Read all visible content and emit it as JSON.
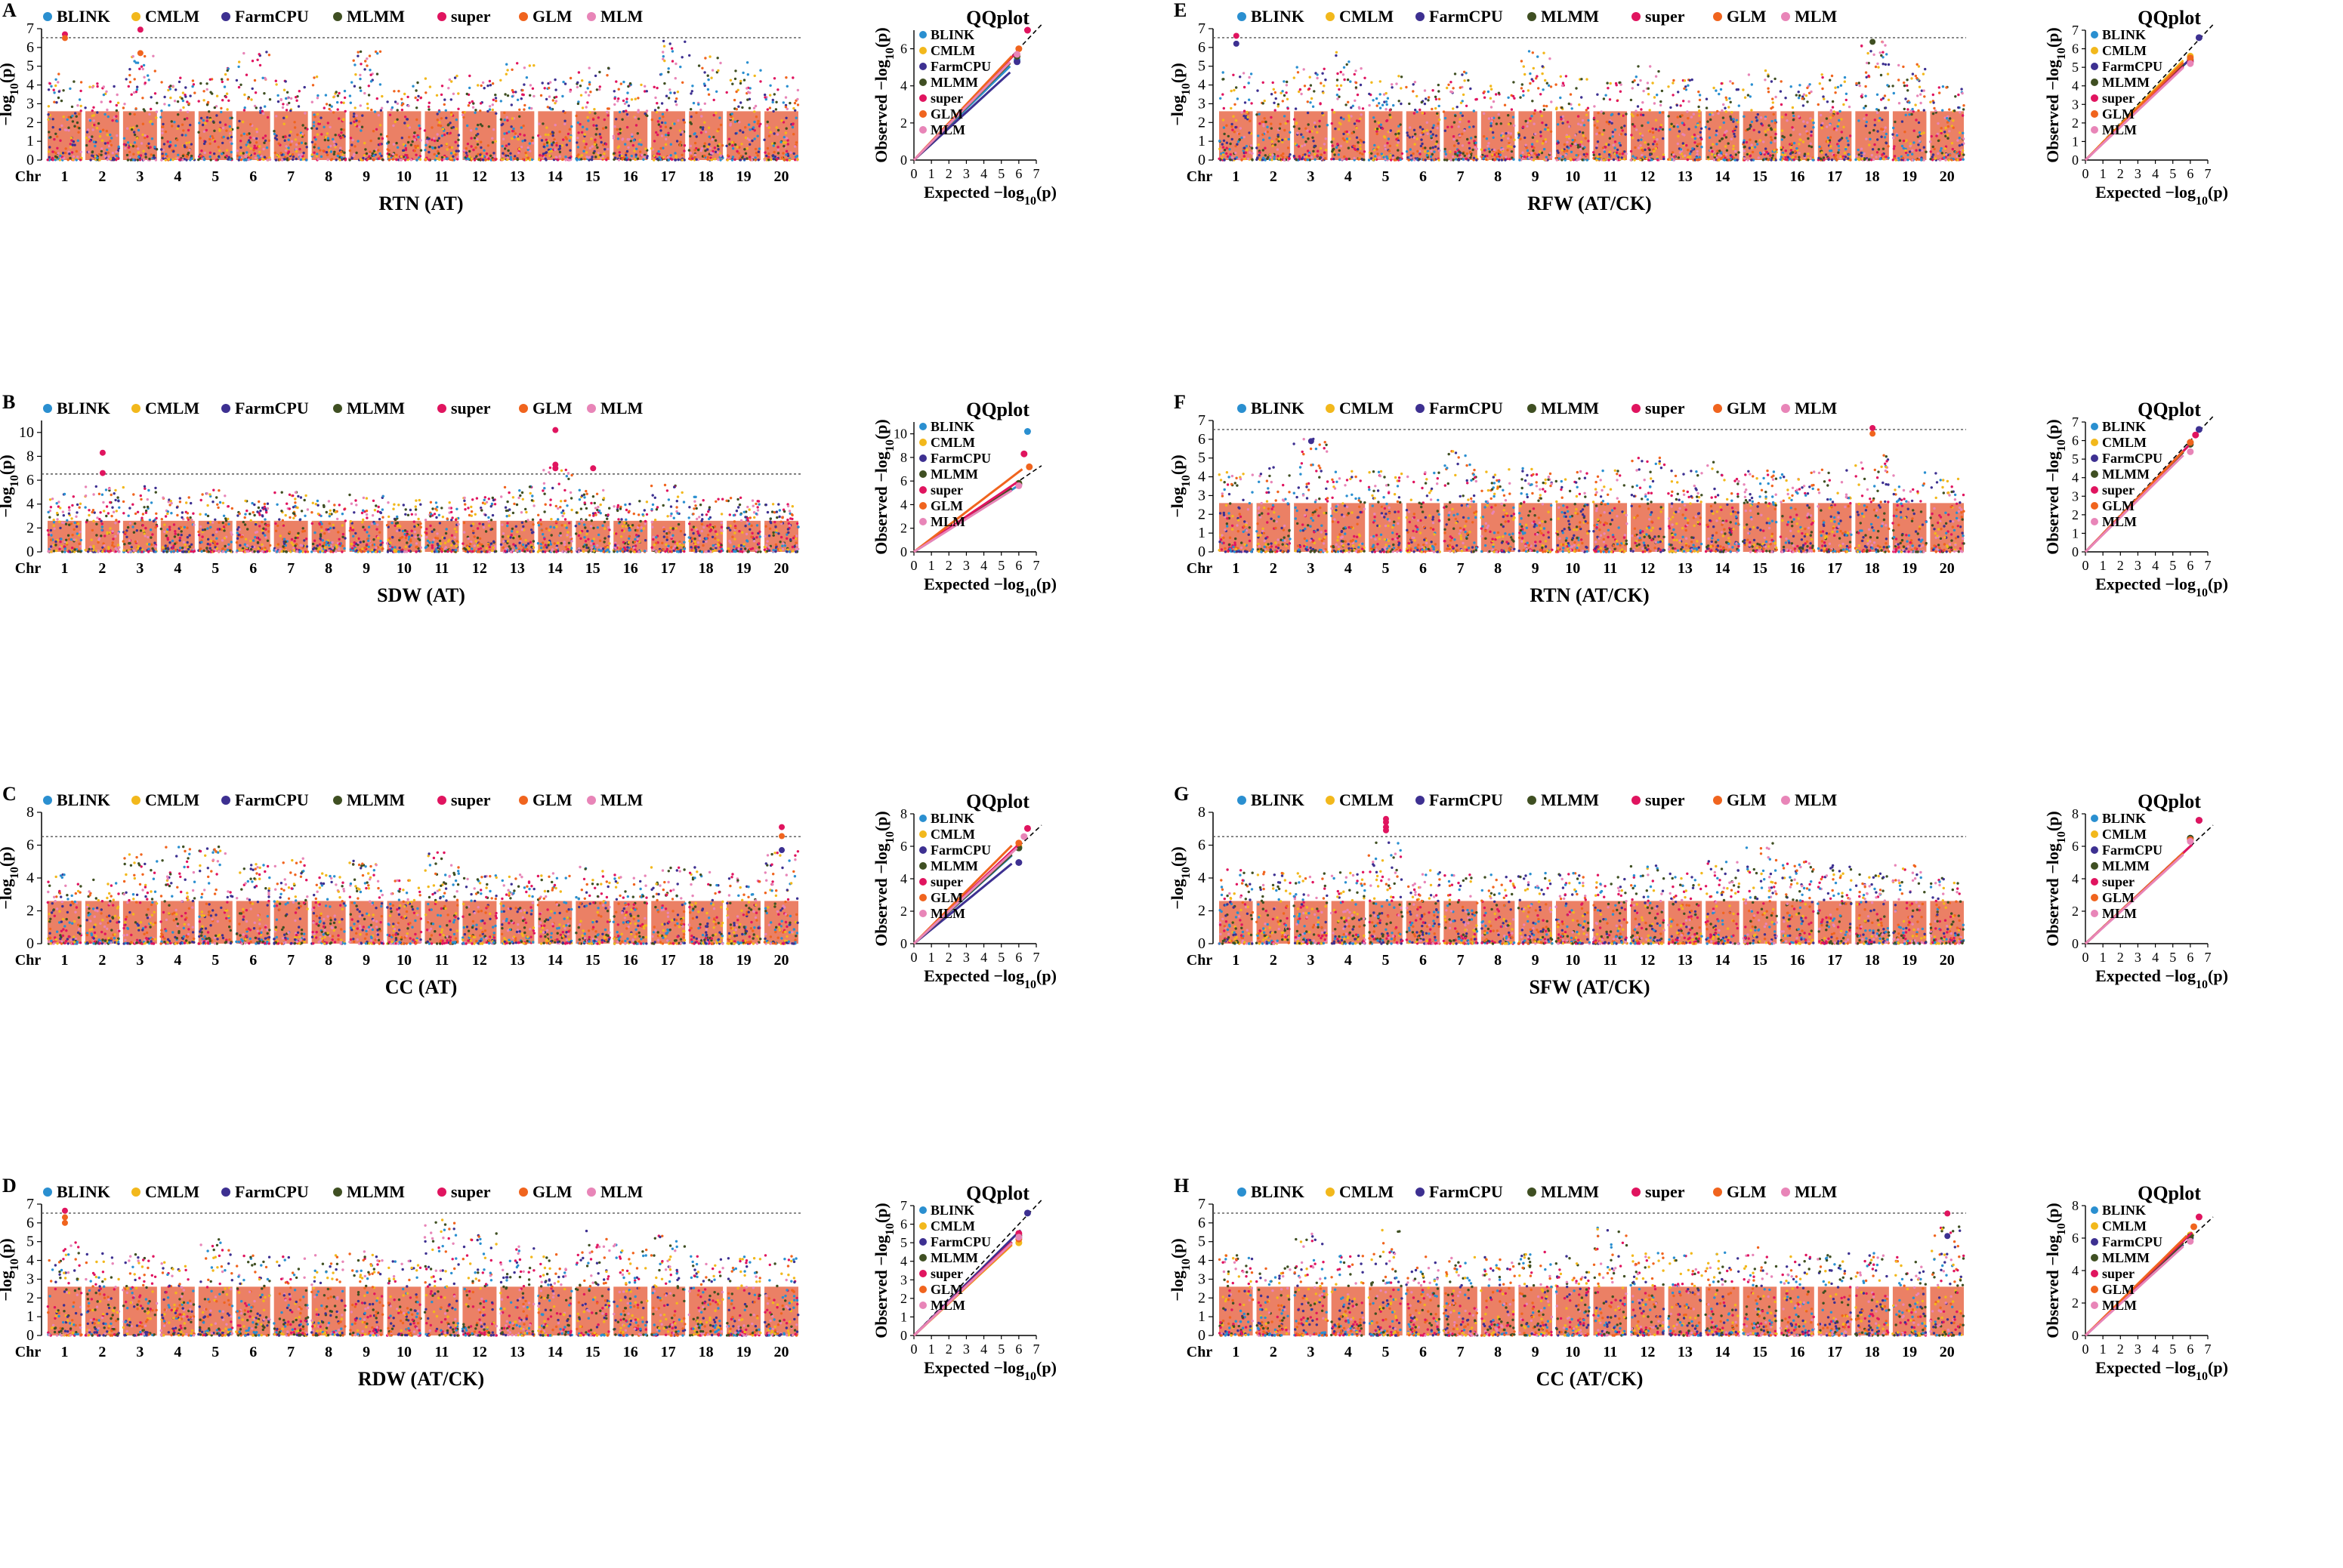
{
  "colors": {
    "BLINK": "#2a8fd0",
    "CMLM": "#f2b81c",
    "FarmCPU": "#3d3091",
    "MLMM": "#3f4f22",
    "super": "#e0145f",
    "GLM": "#f0641e",
    "MLM": "#e885b8",
    "threshold": "#555555",
    "diagonal": "#000000"
  },
  "legend_labels": [
    "BLINK",
    "CMLM",
    "FarmCPU",
    "MLMM",
    "super",
    "GLM",
    "MLM"
  ],
  "qq_title": "QQplot",
  "qq_xlabel": "Expected −log10(p)",
  "qq_ylabel": "Observed −log10(p)",
  "manhattan_ylabel": "−log10(p)",
  "chr_prefix": "Chr",
  "chromosomes": [
    "1",
    "2",
    "3",
    "4",
    "5",
    "6",
    "7",
    "8",
    "9",
    "10",
    "11",
    "12",
    "13",
    "14",
    "15",
    "16",
    "17",
    "18",
    "19",
    "20"
  ],
  "chart_data": [
    {
      "type": "scatter",
      "kind": "manhattan",
      "panel": "A",
      "title": "RTN (AT)",
      "ylim": [
        0,
        7
      ],
      "yticks": [
        0,
        1,
        2,
        3,
        4,
        5,
        6,
        7
      ],
      "threshold": 6.52,
      "chrom_peaks": [
        4.8,
        4.3,
        5.7,
        4.4,
        4.9,
        6.0,
        4.3,
        4.6,
        6.1,
        4.2,
        4.5,
        4.5,
        5.2,
        4.4,
        5.1,
        4.2,
        6.4,
        5.7,
        5.3,
        4.4
      ],
      "signals": [
        {
          "chr": 1,
          "value": 6.7,
          "model": "super"
        },
        {
          "chr": 1,
          "value": 6.5,
          "model": "GLM"
        },
        {
          "chr": 3,
          "value": 6.95,
          "model": "super"
        },
        {
          "chr": 3,
          "value": 5.7,
          "model": "GLM"
        }
      ]
    },
    {
      "type": "scatter",
      "kind": "manhattan",
      "panel": "B",
      "title": "SDW (AT)",
      "ylim": [
        0,
        11
      ],
      "yticks": [
        0,
        2,
        4,
        6,
        8,
        10
      ],
      "threshold": 6.52,
      "chrom_peaks": [
        5.0,
        5.6,
        5.5,
        4.6,
        5.2,
        4.3,
        5.0,
        4.5,
        5.0,
        4.5,
        4.3,
        4.6,
        5.5,
        7.3,
        5.3,
        4.4,
        5.9,
        4.6,
        4.8,
        4.0
      ],
      "signals": [
        {
          "chr": 2,
          "value": 8.3,
          "model": "super"
        },
        {
          "chr": 2,
          "value": 6.6,
          "model": "super"
        },
        {
          "chr": 14,
          "value": 10.2,
          "model": "super"
        },
        {
          "chr": 14,
          "value": 7.3,
          "model": "super"
        },
        {
          "chr": 14,
          "value": 7.0,
          "model": "super"
        },
        {
          "chr": 15,
          "value": 7.0,
          "model": "super"
        }
      ]
    },
    {
      "type": "scatter",
      "kind": "manhattan",
      "panel": "C",
      "title": "CC (AT)",
      "ylim": [
        0,
        8
      ],
      "yticks": [
        0,
        2,
        4,
        6,
        8
      ],
      "threshold": 6.52,
      "chrom_peaks": [
        4.3,
        4.0,
        5.5,
        6.1,
        6.1,
        5.1,
        5.2,
        4.3,
        5.1,
        4.2,
        5.8,
        4.2,
        4.4,
        4.3,
        4.7,
        4.2,
        4.7,
        4.9,
        4.3,
        5.7
      ],
      "signals": [
        {
          "chr": 20,
          "value": 7.1,
          "model": "super"
        },
        {
          "chr": 20,
          "value": 6.55,
          "model": "GLM"
        },
        {
          "chr": 20,
          "value": 5.7,
          "model": "FarmCPU"
        }
      ]
    },
    {
      "type": "scatter",
      "kind": "manhattan",
      "panel": "D",
      "title": "RDW (AT/CK)",
      "ylim": [
        0,
        7
      ],
      "yticks": [
        0,
        1,
        2,
        3,
        4,
        5,
        6,
        7
      ],
      "threshold": 6.52,
      "chrom_peaks": [
        5.0,
        4.4,
        4.4,
        4.0,
        5.2,
        4.5,
        4.4,
        4.3,
        4.5,
        4.0,
        6.2,
        5.5,
        4.8,
        4.5,
        5.6,
        4.9,
        5.7,
        4.3,
        4.2,
        4.3
      ],
      "signals": [
        {
          "chr": 1,
          "value": 6.65,
          "model": "super"
        },
        {
          "chr": 1,
          "value": 6.3,
          "model": "GLM"
        },
        {
          "chr": 1,
          "value": 6.0,
          "model": "GLM"
        }
      ]
    },
    {
      "type": "scatter",
      "kind": "manhattan",
      "panel": "E",
      "title": "RFW (AT/CK)",
      "ylim": [
        0,
        7
      ],
      "yticks": [
        0,
        1,
        2,
        3,
        4,
        5,
        6,
        7
      ],
      "threshold": 6.52,
      "chrom_peaks": [
        4.8,
        4.2,
        5.1,
        5.8,
        4.5,
        4.2,
        4.8,
        4.2,
        6.1,
        4.5,
        4.2,
        5.0,
        4.3,
        4.3,
        4.8,
        4.4,
        4.6,
        6.3,
        5.1,
        4.0
      ],
      "signals": [
        {
          "chr": 1,
          "value": 6.62,
          "model": "super"
        },
        {
          "chr": 1,
          "value": 6.2,
          "model": "FarmCPU"
        },
        {
          "chr": 18,
          "value": 6.3,
          "model": "MLMM"
        }
      ]
    },
    {
      "type": "scatter",
      "kind": "manhattan",
      "panel": "F",
      "title": "RTN (AT/CK)",
      "ylim": [
        0,
        7
      ],
      "yticks": [
        0,
        1,
        2,
        3,
        4,
        5,
        6,
        7
      ],
      "threshold": 6.52,
      "chrom_peaks": [
        4.4,
        4.8,
        6.2,
        4.4,
        4.3,
        4.4,
        5.6,
        4.4,
        4.5,
        4.3,
        4.4,
        5.1,
        4.4,
        4.8,
        4.4,
        4.3,
        4.4,
        5.2,
        4.3,
        4.2
      ],
      "signals": [
        {
          "chr": 18,
          "value": 6.6,
          "model": "super"
        },
        {
          "chr": 18,
          "value": 6.3,
          "model": "GLM"
        },
        {
          "chr": 3,
          "value": 5.9,
          "model": "FarmCPU"
        }
      ]
    },
    {
      "type": "scatter",
      "kind": "manhattan",
      "panel": "G",
      "title": "SFW (AT/CK)",
      "ylim": [
        0,
        8
      ],
      "yticks": [
        0,
        2,
        4,
        6,
        8
      ],
      "threshold": 6.52,
      "chrom_peaks": [
        4.6,
        4.4,
        4.3,
        4.4,
        6.2,
        4.5,
        4.2,
        4.3,
        4.3,
        4.3,
        4.2,
        5.0,
        4.6,
        5.1,
        6.2,
        5.0,
        4.8,
        4.3,
        4.8,
        4.0
      ],
      "signals": [
        {
          "chr": 5,
          "value": 7.6,
          "model": "super"
        },
        {
          "chr": 5,
          "value": 7.4,
          "model": "super"
        },
        {
          "chr": 5,
          "value": 7.1,
          "model": "super"
        },
        {
          "chr": 5,
          "value": 6.9,
          "model": "super"
        }
      ]
    },
    {
      "type": "scatter",
      "kind": "manhattan",
      "panel": "H",
      "title": "CC (AT/CK)",
      "ylim": [
        0,
        7
      ],
      "yticks": [
        0,
        1,
        2,
        3,
        4,
        5,
        6,
        7
      ],
      "threshold": 6.52,
      "chrom_peaks": [
        4.3,
        4.0,
        5.6,
        4.3,
        5.8,
        4.2,
        4.3,
        4.2,
        4.5,
        4.3,
        6.0,
        4.5,
        4.4,
        4.5,
        4.7,
        4.3,
        4.4,
        4.4,
        4.2,
        5.8
      ],
      "signals": [
        {
          "chr": 20,
          "value": 6.5,
          "model": "super"
        },
        {
          "chr": 20,
          "value": 5.3,
          "model": "FarmCPU"
        }
      ]
    },
    {
      "type": "line",
      "kind": "qqplot",
      "panel": "A",
      "xlim": [
        0,
        7
      ],
      "ylim": [
        0,
        7
      ],
      "yticks": [
        0,
        2,
        4,
        6
      ],
      "series": [
        {
          "name": "BLINK",
          "slope": 0.92,
          "end_x": 5.9,
          "end_y": 5.4
        },
        {
          "name": "CMLM",
          "slope": 0.95,
          "end_x": 5.9,
          "end_y": 5.6
        },
        {
          "name": "FarmCPU",
          "slope": 0.86,
          "end_x": 5.9,
          "end_y": 5.3
        },
        {
          "name": "MLMM",
          "slope": 0.95,
          "end_x": 5.9,
          "end_y": 5.6
        },
        {
          "name": "super",
          "slope": 0.99,
          "end_x": 6.5,
          "end_y": 7.0
        },
        {
          "name": "GLM",
          "slope": 1.0,
          "end_x": 6.0,
          "end_y": 6.0
        },
        {
          "name": "MLM",
          "slope": 0.96,
          "end_x": 5.9,
          "end_y": 5.7
        }
      ]
    },
    {
      "type": "line",
      "kind": "qqplot",
      "panel": "B",
      "xlim": [
        0,
        7
      ],
      "ylim": [
        0,
        11
      ],
      "yticks": [
        0,
        2,
        4,
        6,
        8,
        10
      ],
      "series": [
        {
          "name": "BLINK",
          "slope": 0.94,
          "end_x": 6.5,
          "end_y": 10.2
        },
        {
          "name": "CMLM",
          "slope": 0.97,
          "end_x": 6.0,
          "end_y": 5.8
        },
        {
          "name": "FarmCPU",
          "slope": 0.95,
          "end_x": 6.0,
          "end_y": 5.7
        },
        {
          "name": "MLMM",
          "slope": 0.96,
          "end_x": 6.0,
          "end_y": 5.8
        },
        {
          "name": "super",
          "slope": 1.0,
          "end_x": 6.3,
          "end_y": 8.3
        },
        {
          "name": "GLM",
          "slope": 1.13,
          "end_x": 6.6,
          "end_y": 7.2
        },
        {
          "name": "MLM",
          "slope": 0.93,
          "end_x": 6.0,
          "end_y": 5.6
        }
      ]
    },
    {
      "type": "line",
      "kind": "qqplot",
      "panel": "C",
      "xlim": [
        0,
        7
      ],
      "ylim": [
        0,
        8
      ],
      "yticks": [
        0,
        2,
        4,
        6,
        8
      ],
      "series": [
        {
          "name": "BLINK",
          "slope": 0.97,
          "end_x": 6.0,
          "end_y": 5.9
        },
        {
          "name": "CMLM",
          "slope": 1.0,
          "end_x": 6.0,
          "end_y": 6.0
        },
        {
          "name": "FarmCPU",
          "slope": 0.88,
          "end_x": 6.0,
          "end_y": 5.0
        },
        {
          "name": "MLMM",
          "slope": 0.98,
          "end_x": 6.0,
          "end_y": 5.9
        },
        {
          "name": "super",
          "slope": 1.02,
          "end_x": 6.5,
          "end_y": 7.1
        },
        {
          "name": "GLM",
          "slope": 1.08,
          "end_x": 6.0,
          "end_y": 6.2
        },
        {
          "name": "MLM",
          "slope": 1.0,
          "end_x": 6.3,
          "end_y": 6.6
        }
      ]
    },
    {
      "type": "line",
      "kind": "qqplot",
      "panel": "D",
      "xlim": [
        0,
        7
      ],
      "ylim": [
        0,
        7
      ],
      "yticks": [
        0,
        1,
        2,
        3,
        4,
        5,
        6,
        7
      ],
      "series": [
        {
          "name": "BLINK",
          "slope": 0.9,
          "end_x": 6.0,
          "end_y": 5.3
        },
        {
          "name": "CMLM",
          "slope": 0.87,
          "end_x": 6.0,
          "end_y": 5.0
        },
        {
          "name": "FarmCPU",
          "slope": 0.93,
          "end_x": 6.5,
          "end_y": 6.6
        },
        {
          "name": "MLMM",
          "slope": 0.9,
          "end_x": 6.0,
          "end_y": 5.4
        },
        {
          "name": "super",
          "slope": 0.9,
          "end_x": 6.0,
          "end_y": 5.5
        },
        {
          "name": "GLM",
          "slope": 0.88,
          "end_x": 6.0,
          "end_y": 5.2
        },
        {
          "name": "MLM",
          "slope": 0.89,
          "end_x": 6.0,
          "end_y": 5.3
        }
      ]
    },
    {
      "type": "line",
      "kind": "qqplot",
      "panel": "E",
      "xlim": [
        0,
        7
      ],
      "ylim": [
        0,
        7
      ],
      "yticks": [
        0,
        1,
        2,
        3,
        4,
        5,
        6,
        7
      ],
      "series": [
        {
          "name": "BLINK",
          "slope": 0.92,
          "end_x": 6.0,
          "end_y": 5.3
        },
        {
          "name": "CMLM",
          "slope": 0.96,
          "end_x": 6.0,
          "end_y": 5.6
        },
        {
          "name": "FarmCPU",
          "slope": 0.91,
          "end_x": 6.5,
          "end_y": 6.6
        },
        {
          "name": "MLMM",
          "slope": 0.92,
          "end_x": 6.0,
          "end_y": 5.4
        },
        {
          "name": "super",
          "slope": 0.9,
          "end_x": 6.0,
          "end_y": 5.3
        },
        {
          "name": "GLM",
          "slope": 0.94,
          "end_x": 6.0,
          "end_y": 5.5
        },
        {
          "name": "MLM",
          "slope": 0.89,
          "end_x": 6.0,
          "end_y": 5.2
        }
      ]
    },
    {
      "type": "line",
      "kind": "qqplot",
      "panel": "F",
      "xlim": [
        0,
        7
      ],
      "ylim": [
        0,
        7
      ],
      "yticks": [
        0,
        1,
        2,
        3,
        4,
        5,
        6,
        7
      ],
      "series": [
        {
          "name": "BLINK",
          "slope": 0.96,
          "end_x": 6.0,
          "end_y": 5.9
        },
        {
          "name": "CMLM",
          "slope": 0.97,
          "end_x": 6.0,
          "end_y": 5.9
        },
        {
          "name": "FarmCPU",
          "slope": 0.97,
          "end_x": 6.5,
          "end_y": 6.6
        },
        {
          "name": "MLMM",
          "slope": 0.96,
          "end_x": 6.0,
          "end_y": 5.8
        },
        {
          "name": "super",
          "slope": 0.97,
          "end_x": 6.3,
          "end_y": 6.3
        },
        {
          "name": "GLM",
          "slope": 0.97,
          "end_x": 6.0,
          "end_y": 5.9
        },
        {
          "name": "MLM",
          "slope": 0.93,
          "end_x": 6.0,
          "end_y": 5.4
        }
      ]
    },
    {
      "type": "line",
      "kind": "qqplot",
      "panel": "G",
      "xlim": [
        0,
        7
      ],
      "ylim": [
        0,
        8
      ],
      "yticks": [
        0,
        2,
        4,
        6,
        8
      ],
      "series": [
        {
          "name": "BLINK",
          "slope": 1.0,
          "end_x": 6.0,
          "end_y": 6.5
        },
        {
          "name": "CMLM",
          "slope": 1.0,
          "end_x": 6.0,
          "end_y": 6.4
        },
        {
          "name": "FarmCPU",
          "slope": 1.0,
          "end_x": 6.5,
          "end_y": 7.6
        },
        {
          "name": "MLMM",
          "slope": 1.0,
          "end_x": 6.0,
          "end_y": 6.5
        },
        {
          "name": "super",
          "slope": 1.0,
          "end_x": 6.5,
          "end_y": 7.6
        },
        {
          "name": "GLM",
          "slope": 1.0,
          "end_x": 6.0,
          "end_y": 6.4
        },
        {
          "name": "MLM",
          "slope": 0.98,
          "end_x": 6.0,
          "end_y": 6.3
        }
      ]
    },
    {
      "type": "line",
      "kind": "qqplot",
      "panel": "H",
      "xlim": [
        0,
        7
      ],
      "ylim": [
        0,
        8
      ],
      "yticks": [
        0,
        2,
        4,
        6,
        8
      ],
      "series": [
        {
          "name": "BLINK",
          "slope": 1.02,
          "end_x": 6.0,
          "end_y": 6.1
        },
        {
          "name": "CMLM",
          "slope": 1.03,
          "end_x": 6.0,
          "end_y": 6.2
        },
        {
          "name": "FarmCPU",
          "slope": 1.0,
          "end_x": 6.0,
          "end_y": 6.0
        },
        {
          "name": "MLMM",
          "slope": 1.02,
          "end_x": 6.0,
          "end_y": 6.1
        },
        {
          "name": "super",
          "slope": 1.04,
          "end_x": 6.5,
          "end_y": 7.3
        },
        {
          "name": "GLM",
          "slope": 1.06,
          "end_x": 6.2,
          "end_y": 6.7
        },
        {
          "name": "MLM",
          "slope": 0.98,
          "end_x": 6.0,
          "end_y": 5.8
        }
      ]
    }
  ]
}
